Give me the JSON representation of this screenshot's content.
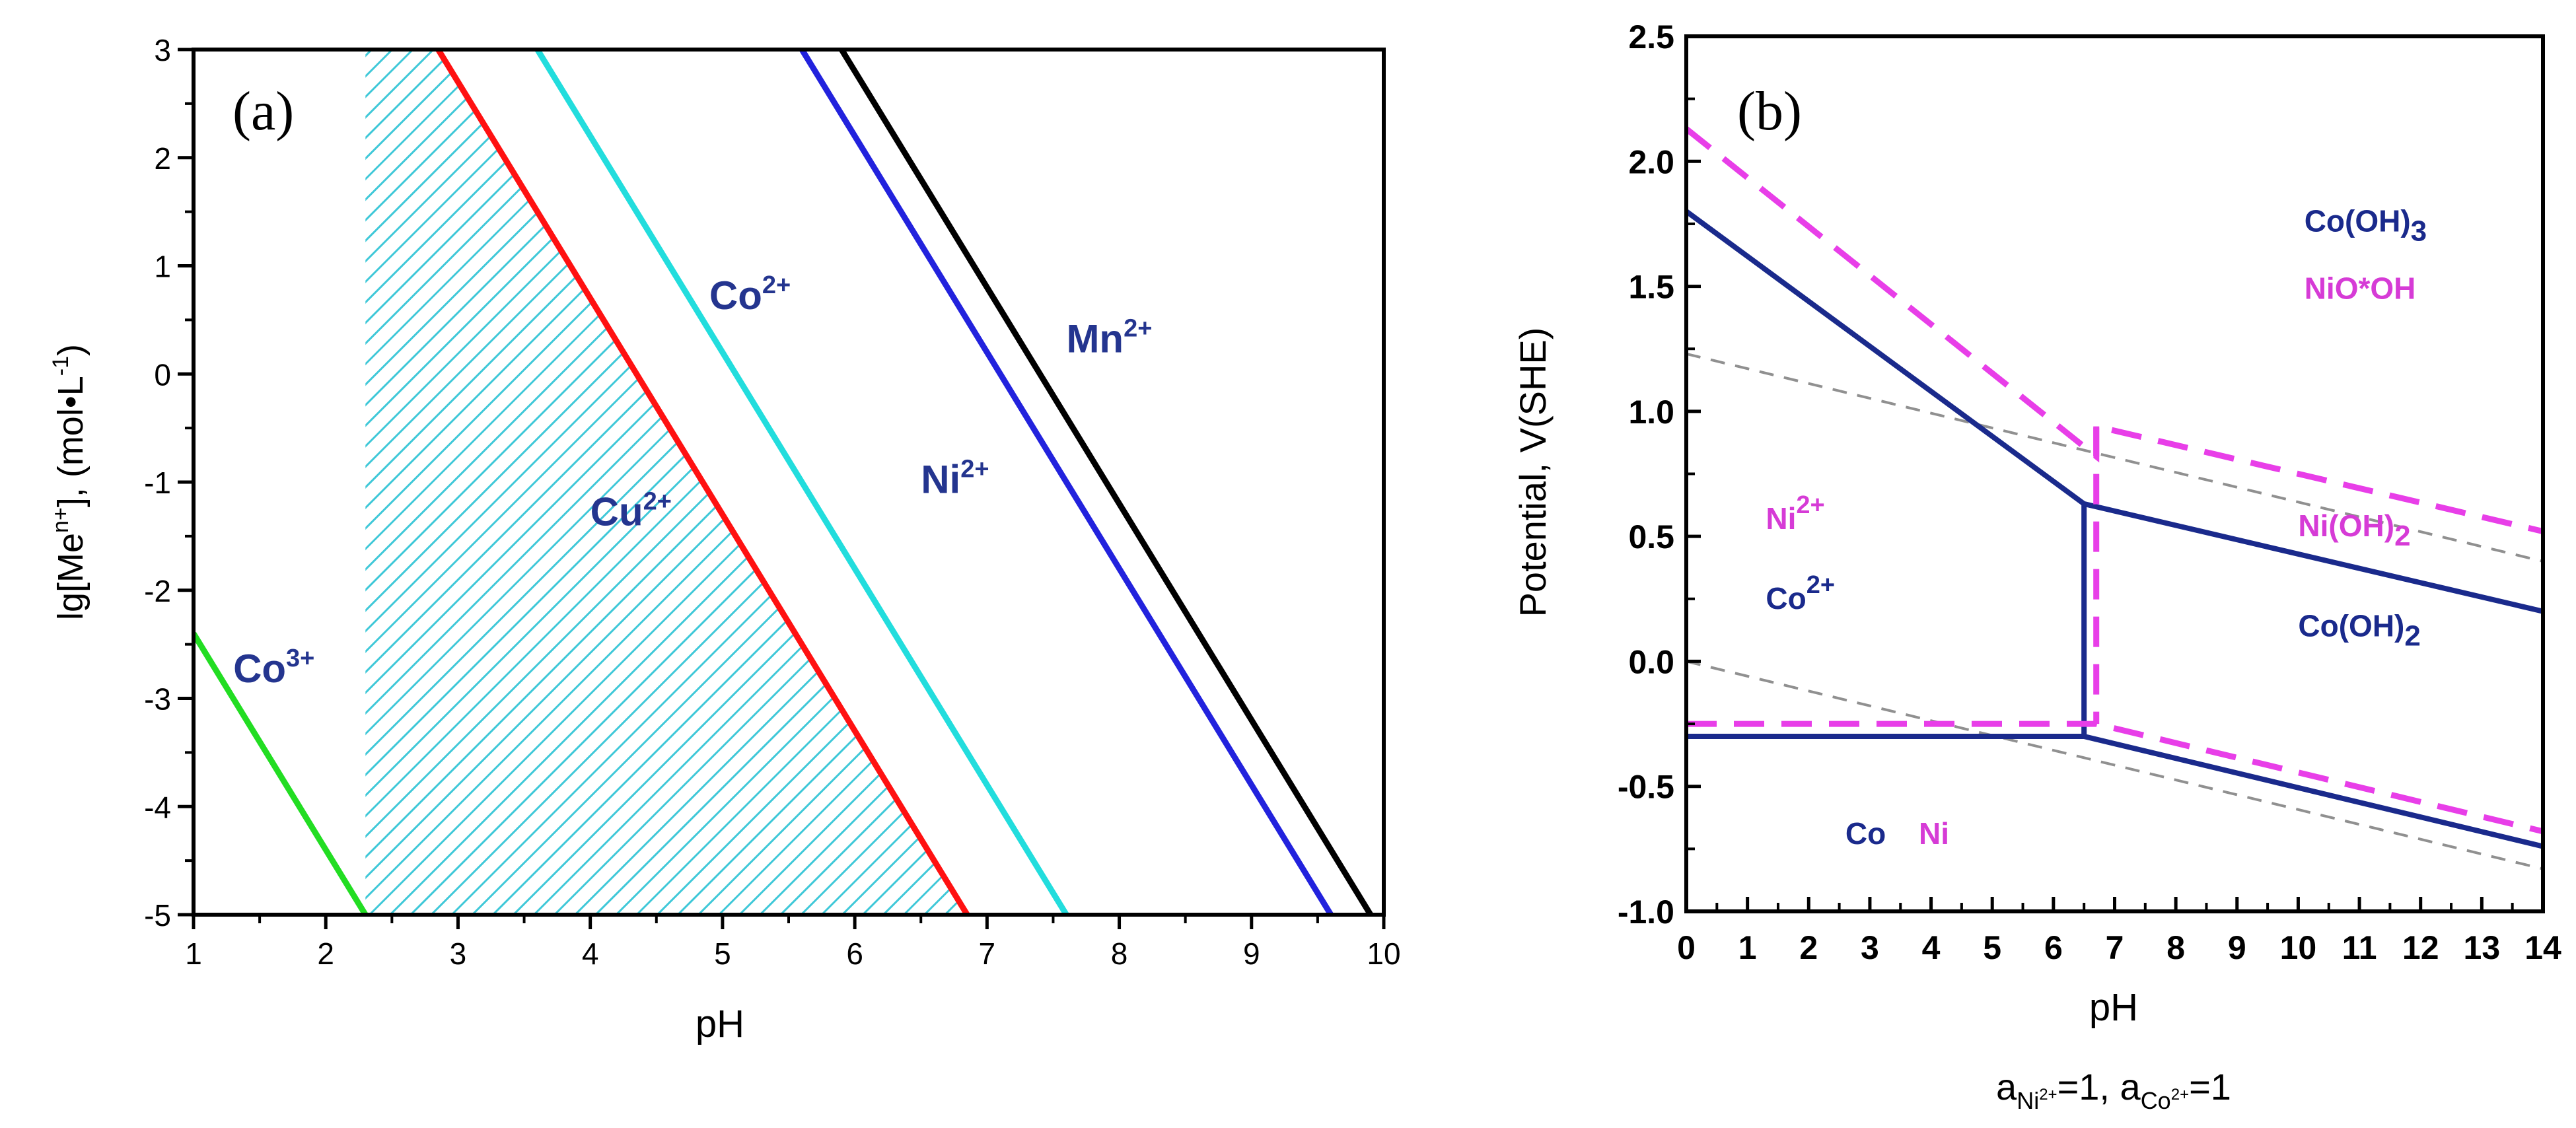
{
  "figure": {
    "panels": [
      "(a)",
      "(b)"
    ]
  },
  "chart_data": [
    {
      "type": "line",
      "panel_label": "(a)",
      "title": "",
      "xlabel": "pH",
      "ylabel": "lg[Me",
      "ylabel_sup": "n+",
      "ylabel_rest": "], (mol•L",
      "ylabel_sup2": "-1",
      "ylabel_end": ")",
      "xlim": [
        1,
        10
      ],
      "ylim": [
        -5,
        3
      ],
      "xticks": [
        "1",
        "2",
        "3",
        "4",
        "5",
        "6",
        "7",
        "8",
        "9",
        "10"
      ],
      "yticks": [
        "-5",
        "-4",
        "-3",
        "-2",
        "-1",
        "0",
        "1",
        "2",
        "3"
      ],
      "series": [
        {
          "name": "Co3+",
          "label": "Co",
          "sup": "3+",
          "color": "#22dd22",
          "x": [
            1.0,
            2.3
          ],
          "y": [
            -2.4,
            -5.0
          ],
          "label_at": [
            1.3,
            -2.85
          ]
        },
        {
          "name": "Cu2+",
          "label": "Cu",
          "sup": "2+",
          "color": "#ff1111",
          "x": [
            2.85,
            6.85
          ],
          "y": [
            3.0,
            -5.0
          ],
          "label_at": [
            4.0,
            -1.4
          ]
        },
        {
          "name": "Co2+",
          "label": "Co",
          "sup": "2+",
          "color": "#22dddd",
          "x": [
            3.6,
            7.6
          ],
          "y": [
            3.0,
            -5.0
          ],
          "label_at": [
            4.9,
            0.6
          ]
        },
        {
          "name": "Ni2+",
          "label": "Ni",
          "sup": "2+",
          "color": "#2222dd",
          "x": [
            5.6,
            9.6
          ],
          "y": [
            3.0,
            -5.0
          ],
          "label_at": [
            6.5,
            -1.1
          ]
        },
        {
          "name": "Mn2+",
          "label": "Mn",
          "sup": "2+",
          "color": "#000000",
          "x": [
            5.9,
            9.9
          ],
          "y": [
            3.0,
            -5.0
          ],
          "label_at": [
            7.6,
            0.2
          ]
        }
      ],
      "shaded_region": {
        "color": "#3fc8d8",
        "x_left": 2.3,
        "between": "x = 2.3 and Cu2+ line"
      }
    },
    {
      "type": "line",
      "panel_label": "(b)",
      "title": "",
      "xlabel": "pH",
      "ylabel": "Potential, V(SHE)",
      "footnote_parts": [
        "a",
        "Ni",
        "2+",
        "=1, a",
        "Co",
        "2+",
        "=1"
      ],
      "xlim": [
        0,
        14
      ],
      "ylim": [
        -1.0,
        2.5
      ],
      "xticks": [
        "0",
        "1",
        "2",
        "3",
        "4",
        "5",
        "6",
        "7",
        "8",
        "9",
        "10",
        "11",
        "12",
        "13",
        "14"
      ],
      "yticks": [
        "-1.0",
        "-0.5",
        "0.0",
        "0.5",
        "1.0",
        "1.5",
        "2.0",
        "2.5"
      ],
      "series": [
        {
          "name": "Co upper boundary",
          "color": "#1a2a8c",
          "style": "solid",
          "x": [
            0,
            6.5,
            14
          ],
          "y": [
            1.8,
            0.63,
            0.2
          ]
        },
        {
          "name": "Co vertical boundary",
          "color": "#1a2a8c",
          "style": "solid",
          "x": [
            6.5,
            6.5
          ],
          "y": [
            0.63,
            -0.3
          ]
        },
        {
          "name": "Co lower boundary",
          "color": "#1a2a8c",
          "style": "solid",
          "x": [
            0,
            6.5,
            14
          ],
          "y": [
            -0.3,
            -0.3,
            -0.74
          ]
        },
        {
          "name": "Ni upper boundary",
          "color": "#e83ee8",
          "style": "dashed",
          "x": [
            0,
            6.7,
            6.7,
            14
          ],
          "y": [
            2.13,
            0.82,
            0.94,
            0.52
          ]
        },
        {
          "name": "Ni vertical boundary",
          "color": "#e83ee8",
          "style": "dashed",
          "x": [
            6.7,
            6.7
          ],
          "y": [
            0.94,
            -0.25
          ]
        },
        {
          "name": "Ni lower boundary",
          "color": "#e83ee8",
          "style": "dashed",
          "x": [
            0,
            6.7,
            14
          ],
          "y": [
            -0.25,
            -0.25,
            -0.68
          ]
        },
        {
          "name": "O2 line",
          "color": "#909090",
          "style": "dashed",
          "x": [
            0,
            14
          ],
          "y": [
            1.23,
            0.4
          ]
        },
        {
          "name": "H2 line",
          "color": "#909090",
          "style": "dashed",
          "x": [
            0,
            14
          ],
          "y": [
            0.0,
            -0.83
          ]
        }
      ],
      "annotations": [
        {
          "text": "Co(OH)",
          "sub": "3",
          "color": "#1a2a8c",
          "at": [
            10.1,
            1.72
          ]
        },
        {
          "text": "NiO*OH",
          "color": "#d63bd6",
          "at": [
            10.1,
            1.45
          ]
        },
        {
          "text": "Ni",
          "sup": "2+",
          "color": "#d63bd6",
          "at": [
            1.3,
            0.53
          ]
        },
        {
          "text": "Co",
          "sup": "2+",
          "color": "#1a2a8c",
          "at": [
            1.3,
            0.21
          ]
        },
        {
          "text": "Ni(OH)",
          "sub": "2",
          "color": "#d63bd6",
          "at": [
            10.0,
            0.5
          ]
        },
        {
          "text": "Co(OH)",
          "sub": "2",
          "color": "#1a2a8c",
          "at": [
            10.0,
            0.1
          ]
        },
        {
          "text": "Co",
          "color": "#1a2a8c",
          "at": [
            2.6,
            -0.73
          ]
        },
        {
          "text": "Ni",
          "color": "#d63bd6",
          "at": [
            3.8,
            -0.73
          ]
        }
      ]
    }
  ]
}
